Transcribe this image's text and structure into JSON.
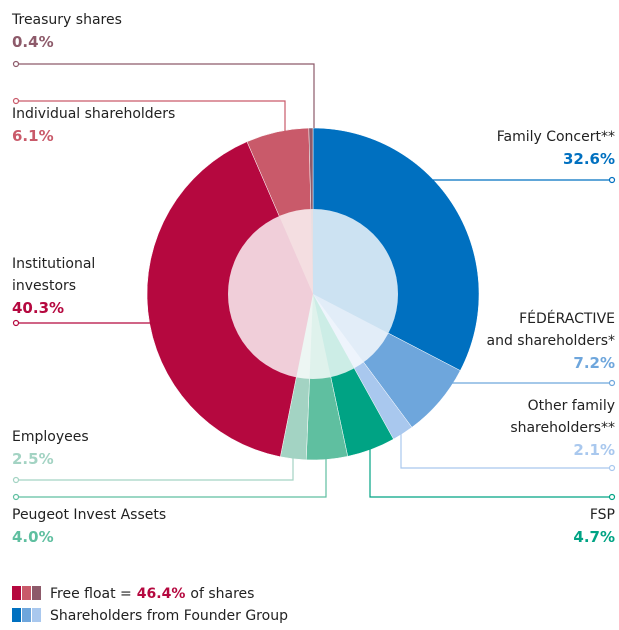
{
  "chart_data": {
    "type": "donut",
    "series": [
      {
        "name_lines": [
          "Family Concert**"
        ],
        "value": 32.6,
        "value_label": "32.6%",
        "color": "#0070c0"
      },
      {
        "name_lines": [
          "FÉDÉRACTIVE",
          "and shareholders*"
        ],
        "value": 7.2,
        "value_label": "7.2%",
        "color": "#6ea6dc"
      },
      {
        "name_lines": [
          "Other family",
          "shareholders**"
        ],
        "value": 2.1,
        "value_label": "2.1%",
        "color": "#a9c8ee"
      },
      {
        "name_lines": [
          "FSP"
        ],
        "value": 4.7,
        "value_label": "4.7%",
        "color": "#00a384"
      },
      {
        "name_lines": [
          "Peugeot Invest Assets"
        ],
        "value": 4.0,
        "value_label": "4.0%",
        "color": "#5fbfa0"
      },
      {
        "name_lines": [
          "Employees"
        ],
        "value": 2.5,
        "value_label": "2.5%",
        "color": "#a3d3c3"
      },
      {
        "name_lines": [
          "Institutional",
          "investors"
        ],
        "value": 40.3,
        "value_label": "40.3%",
        "color": "#b5083f"
      },
      {
        "name_lines": [
          "Individual shareholders"
        ],
        "value": 6.1,
        "value_label": "6.1%",
        "color": "#c95a6a"
      },
      {
        "name_lines": [
          "Treasury shares"
        ],
        "value": 0.4,
        "value_label": "0.4%",
        "color": "#8d5a6a"
      }
    ],
    "legend": [
      {
        "text": "Free float =",
        "highlight": "46.4%",
        "suffix": "of shares",
        "colors": [
          "#b5083f",
          "#c95a6a",
          "#8d5a6a"
        ]
      },
      {
        "text": "Shareholders from Founder Group",
        "colors": [
          "#0070c0",
          "#6ea6dc",
          "#a9c8ee"
        ]
      }
    ]
  }
}
